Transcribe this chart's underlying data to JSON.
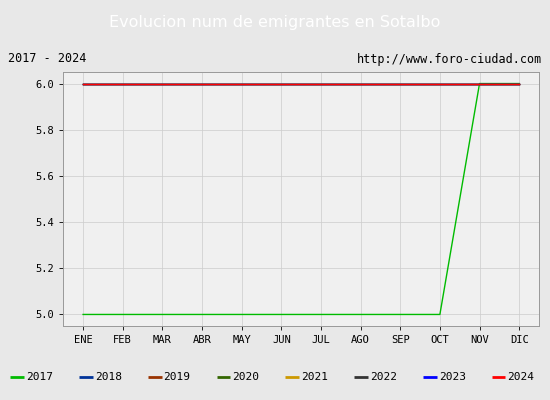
{
  "title": "Evolucion num de emigrantes en Sotalbo",
  "title_color": "#ffffff",
  "title_bg": "#5b9bd5",
  "subtitle_left": "2017 - 2024",
  "subtitle_right": "http://www.foro-ciudad.com",
  "x_labels": [
    "ENE",
    "FEB",
    "MAR",
    "ABR",
    "MAY",
    "JUN",
    "JUL",
    "AGO",
    "SEP",
    "OCT",
    "NOV",
    "DIC"
  ],
  "y_lim": [
    4.95,
    6.05
  ],
  "y_ticks": [
    5.0,
    5.2,
    5.4,
    5.6,
    5.8,
    6.0
  ],
  "series": {
    "2017": {
      "color": "#00bb00",
      "data": [
        5.0,
        5.0,
        5.0,
        5.0,
        5.0,
        5.0,
        5.0,
        5.0,
        5.0,
        5.0,
        6.0,
        6.0
      ]
    },
    "2018": {
      "color": "#003399",
      "data": [
        6.0,
        6.0,
        6.0,
        6.0,
        6.0,
        6.0,
        6.0,
        6.0,
        6.0,
        6.0,
        6.0,
        6.0
      ]
    },
    "2019": {
      "color": "#993300",
      "data": [
        6.0,
        6.0,
        6.0,
        6.0,
        6.0,
        6.0,
        6.0,
        6.0,
        6.0,
        6.0,
        6.0,
        6.0
      ]
    },
    "2020": {
      "color": "#336600",
      "data": [
        6.0,
        6.0,
        6.0,
        6.0,
        6.0,
        6.0,
        6.0,
        6.0,
        6.0,
        6.0,
        6.0,
        6.0
      ]
    },
    "2021": {
      "color": "#cc9900",
      "data": [
        6.0,
        6.0,
        6.0,
        6.0,
        6.0,
        6.0,
        6.0,
        6.0,
        6.0,
        6.0,
        6.0,
        6.0
      ]
    },
    "2022": {
      "color": "#333333",
      "data": [
        6.0,
        6.0,
        6.0,
        6.0,
        6.0,
        6.0,
        6.0,
        6.0,
        6.0,
        6.0,
        6.0,
        6.0
      ]
    },
    "2023": {
      "color": "#0000ff",
      "data": [
        6.0,
        6.0,
        6.0,
        6.0,
        6.0,
        6.0,
        6.0,
        6.0,
        6.0,
        6.0,
        6.0,
        6.0
      ]
    },
    "2024": {
      "color": "#ff0000",
      "data": [
        6.0,
        6.0,
        6.0,
        6.0,
        6.0,
        6.0,
        6.0,
        6.0,
        6.0,
        6.0,
        6.0,
        6.0
      ]
    }
  },
  "legend_order": [
    "2017",
    "2018",
    "2019",
    "2020",
    "2021",
    "2022",
    "2023",
    "2024"
  ],
  "plot_bg": "#f0f0f0",
  "fig_bg": "#e8e8e8"
}
